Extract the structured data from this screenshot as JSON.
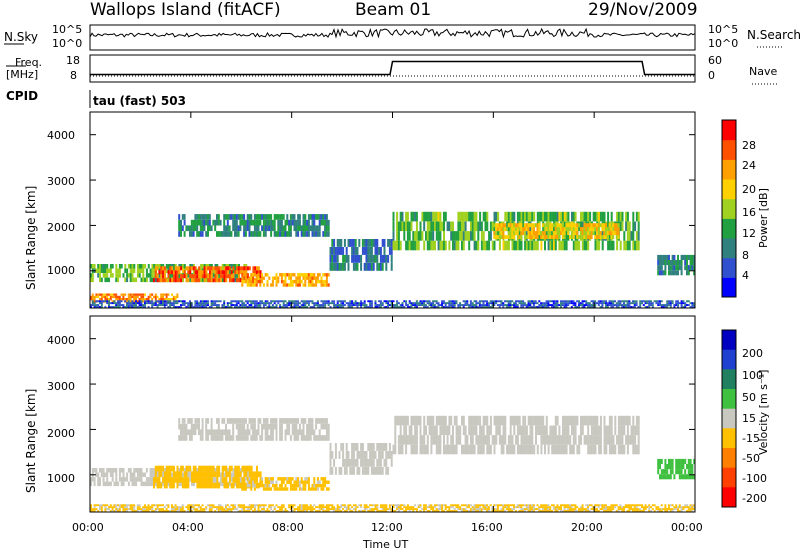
{
  "header": {
    "station": "Wallops Island (fitACF)",
    "beam": "Beam 01",
    "date": "29/Nov/2009"
  },
  "strip": {
    "nsky_label": "N.Sky",
    "nsky_ticks": [
      "10^5",
      "10^0"
    ],
    "nsearch_label": "N.Search",
    "nsearch_ticks": [
      "10^5",
      "10^0"
    ],
    "freq_label": "Freq.",
    "freq_unit": "[MHz]",
    "freq_ticks": [
      "18",
      "8"
    ],
    "nave_label": "Nave",
    "nave_ticks": [
      "60",
      "0"
    ],
    "cpid_label": "CPID",
    "cpid_value": "tau (fast) 503"
  },
  "axes": {
    "ylabel": "Slant Range [km]",
    "xlabel": "Time UT",
    "x_ticks": [
      "00:00",
      "04:00",
      "08:00",
      "12:00",
      "16:00",
      "20:00",
      "00:00"
    ],
    "y_ticks": [
      "1000",
      "2000",
      "3000",
      "4000"
    ]
  },
  "colorbars": {
    "power": {
      "label": "Power [dB]",
      "ticks": [
        "4",
        "8",
        "12",
        "16",
        "20",
        "24",
        "28"
      ],
      "colors": [
        "#0000ff",
        "#3050d0",
        "#308080",
        "#20a040",
        "#a0d020",
        "#ffd000",
        "#ffa000",
        "#ff5000",
        "#ff0000"
      ]
    },
    "velocity": {
      "label": "Velocity [m s⁻¹]",
      "ticks": [
        "200",
        "100",
        "50",
        "15",
        "-15",
        "-50",
        "-100",
        "-200"
      ],
      "colors": [
        "#0000c0",
        "#2040d0",
        "#208060",
        "#40c040",
        "#c8c8c0",
        "#ffc000",
        "#ff8000",
        "#ff4000",
        "#ff0000"
      ]
    }
  },
  "chart_data": [
    {
      "type": "line",
      "name": "Frequency",
      "x": [
        0,
        11.9,
        12.0,
        21.9,
        22.0,
        24.0
      ],
      "y": [
        10.5,
        10.5,
        15.5,
        15.5,
        10.5,
        10.5
      ],
      "ylim": [
        8,
        18
      ]
    },
    {
      "type": "heatmap",
      "name": "Power",
      "xlim": [
        0,
        24
      ],
      "ylim": [
        180,
        4500
      ],
      "bands": [
        {
          "t": [
            0,
            6.3
          ],
          "r": [
            750,
            1150
          ],
          "v": 14
        },
        {
          "t": [
            2.5,
            6.8
          ],
          "r": [
            750,
            1100
          ],
          "v": 26
        },
        {
          "t": [
            6.0,
            9.5
          ],
          "r": [
            650,
            950
          ],
          "v": 22
        },
        {
          "t": [
            0,
            3.5
          ],
          "r": [
            300,
            500
          ],
          "v": 24
        },
        {
          "t": [
            3.5,
            9.5
          ],
          "r": [
            1750,
            2250
          ],
          "v": 10
        },
        {
          "t": [
            9.5,
            12
          ],
          "r": [
            1000,
            1700
          ],
          "v": 8
        },
        {
          "t": [
            12,
            21.8
          ],
          "r": [
            1450,
            2300
          ],
          "v": 14
        },
        {
          "t": [
            16,
            21
          ],
          "r": [
            1700,
            2050
          ],
          "v": 20
        },
        {
          "t": [
            22.5,
            24
          ],
          "r": [
            900,
            1350
          ],
          "v": 10
        },
        {
          "t": [
            0,
            24
          ],
          "r": [
            180,
            350
          ],
          "v": 6
        }
      ]
    },
    {
      "type": "heatmap",
      "name": "Velocity",
      "xlim": [
        0,
        24
      ],
      "ylim": [
        180,
        4500
      ],
      "bands": [
        {
          "t": [
            0,
            6.3
          ],
          "r": [
            750,
            1150
          ],
          "v": 0
        },
        {
          "t": [
            2.5,
            6.8
          ],
          "r": [
            700,
            1200
          ],
          "v": -40
        },
        {
          "t": [
            6.0,
            9.5
          ],
          "r": [
            650,
            950
          ],
          "v": -20
        },
        {
          "t": [
            3.5,
            9.5
          ],
          "r": [
            1750,
            2250
          ],
          "v": 0
        },
        {
          "t": [
            9.5,
            12
          ],
          "r": [
            1000,
            1700
          ],
          "v": 0
        },
        {
          "t": [
            12,
            21.8
          ],
          "r": [
            1450,
            2300
          ],
          "v": 0
        },
        {
          "t": [
            22.5,
            24
          ],
          "r": [
            900,
            1350
          ],
          "v": 30
        },
        {
          "t": [
            0,
            24
          ],
          "r": [
            180,
            350
          ],
          "v": -20
        }
      ]
    }
  ]
}
